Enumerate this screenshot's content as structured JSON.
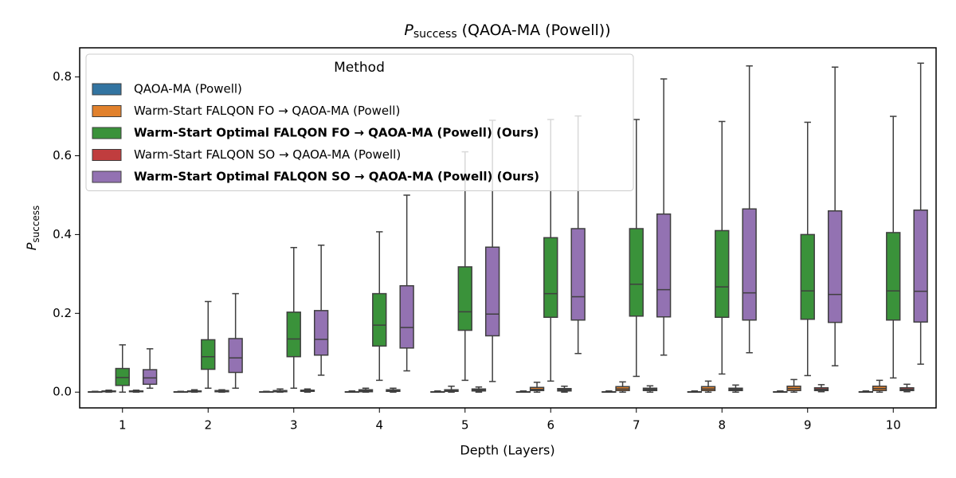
{
  "chart_data": {
    "type": "box",
    "title": {
      "symbol": "P",
      "subscript": "success",
      "text": "(QAOA-MA (Powell))"
    },
    "x_label": "Depth (Layers)",
    "y_label": {
      "symbol": "P",
      "subscript": "success"
    },
    "categories": [
      "1",
      "2",
      "3",
      "4",
      "5",
      "6",
      "7",
      "8",
      "9",
      "10"
    ],
    "ylim": [
      -0.04,
      0.874
    ],
    "yticks": [
      {
        "value": 0,
        "label": "0.0"
      },
      0.2,
      0.4,
      0.6,
      0.8
    ],
    "legend": {
      "title": "Method",
      "corner": "upper left"
    },
    "series": [
      {
        "name": "QAOA-MA (Powell)",
        "color": "#3274a1",
        "bold": false,
        "whislo": [
          0,
          0,
          0,
          0,
          0,
          0,
          0,
          0,
          0,
          0
        ],
        "q1": [
          0,
          0,
          0,
          0,
          0,
          0,
          0,
          0,
          0,
          0
        ],
        "median": [
          0,
          0,
          0,
          0,
          0,
          0,
          0,
          0,
          0,
          0
        ],
        "q3": [
          0.001,
          0.001,
          0.001,
          0.001,
          0.001,
          0.001,
          0.001,
          0.001,
          0.001,
          0.001
        ],
        "whishi": [
          0.002,
          0.002,
          0.002,
          0.003,
          0.003,
          0.003,
          0.003,
          0.003,
          0.003,
          0.003
        ]
      },
      {
        "name": "Warm-Start FALQON FO → QAOA-MA (Powell)",
        "color": "#e1812c",
        "bold": false,
        "whislo": [
          0,
          0,
          0,
          0,
          0,
          0,
          0,
          0,
          0,
          0
        ],
        "q1": [
          0.001,
          0.001,
          0.001,
          0.001,
          0.002,
          0.004,
          0.004,
          0.004,
          0.004,
          0.004
        ],
        "median": [
          0.002,
          0.002,
          0.002,
          0.003,
          0.004,
          0.007,
          0.008,
          0.008,
          0.009,
          0.009
        ],
        "q3": [
          0.003,
          0.003,
          0.004,
          0.006,
          0.006,
          0.012,
          0.014,
          0.014,
          0.015,
          0.015
        ],
        "whishi": [
          0.005,
          0.006,
          0.008,
          0.01,
          0.015,
          0.025,
          0.026,
          0.028,
          0.032,
          0.03
        ]
      },
      {
        "name": "Warm-Start Optimal FALQON FO → QAOA-MA (Powell) (Ours)",
        "color": "#3a923a",
        "bold": true,
        "whislo": [
          0,
          0.01,
          0.01,
          0.03,
          0.03,
          0.028,
          0.04,
          0.046,
          0.042,
          0.036
        ],
        "q1": [
          0.017,
          0.058,
          0.09,
          0.117,
          0.157,
          0.19,
          0.193,
          0.19,
          0.185,
          0.183
        ],
        "median": [
          0.037,
          0.09,
          0.135,
          0.17,
          0.204,
          0.25,
          0.274,
          0.267,
          0.257,
          0.257
        ],
        "q3": [
          0.06,
          0.133,
          0.203,
          0.25,
          0.318,
          0.392,
          0.415,
          0.41,
          0.4,
          0.405
        ],
        "whishi": [
          0.12,
          0.23,
          0.367,
          0.407,
          0.61,
          0.692,
          0.692,
          0.687,
          0.685,
          0.7
        ]
      },
      {
        "name": "Warm-Start FALQON SO → QAOA-MA (Powell)",
        "color": "#c03d3e",
        "bold": false,
        "whislo": [
          0,
          0,
          0,
          0,
          0,
          0,
          0,
          0,
          0.001,
          0.001
        ],
        "q1": [
          0.001,
          0.001,
          0.002,
          0.002,
          0.003,
          0.003,
          0.004,
          0.004,
          0.004,
          0.004
        ],
        "median": [
          0.002,
          0.002,
          0.003,
          0.004,
          0.005,
          0.006,
          0.007,
          0.007,
          0.007,
          0.007
        ],
        "q3": [
          0.003,
          0.004,
          0.005,
          0.006,
          0.008,
          0.009,
          0.01,
          0.01,
          0.011,
          0.011
        ],
        "whishi": [
          0.005,
          0.006,
          0.008,
          0.01,
          0.013,
          0.015,
          0.016,
          0.018,
          0.019,
          0.02
        ]
      },
      {
        "name": "Warm-Start Optimal FALQON SO → QAOA-MA (Powell) (Ours)",
        "color": "#9372b2",
        "bold": true,
        "whislo": [
          0.01,
          0.01,
          0.043,
          0.054,
          0.027,
          0.098,
          0.094,
          0.1,
          0.067,
          0.071
        ],
        "q1": [
          0.02,
          0.05,
          0.094,
          0.112,
          0.143,
          0.183,
          0.191,
          0.183,
          0.177,
          0.178
        ],
        "median": [
          0.036,
          0.087,
          0.134,
          0.164,
          0.198,
          0.242,
          0.26,
          0.252,
          0.248,
          0.256
        ],
        "q3": [
          0.057,
          0.136,
          0.207,
          0.27,
          0.368,
          0.415,
          0.452,
          0.465,
          0.46,
          0.462
        ],
        "whishi": [
          0.11,
          0.25,
          0.373,
          0.5,
          0.69,
          0.701,
          0.795,
          0.828,
          0.825,
          0.835
        ]
      }
    ]
  }
}
